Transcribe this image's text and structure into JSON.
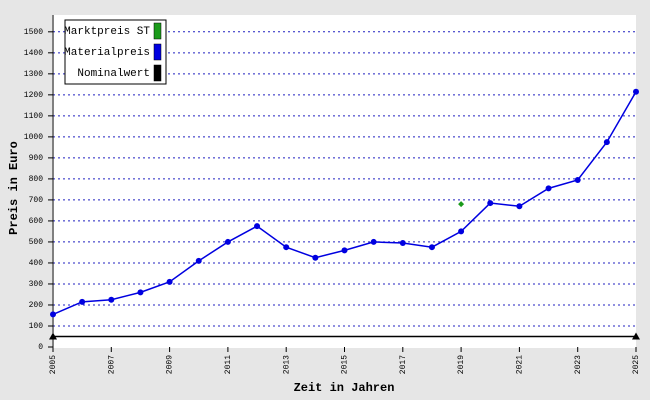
{
  "chart_data": {
    "type": "line",
    "x_label": "Zeit in Jahren",
    "y_label": "Preis in Euro",
    "xlim": [
      2005,
      2025
    ],
    "xticks": [
      2005,
      2007,
      2009,
      2011,
      2013,
      2015,
      2017,
      2019,
      2021,
      2023,
      2025
    ],
    "ylim": [
      0,
      1580
    ],
    "yticks": [
      0,
      100,
      200,
      300,
      400,
      500,
      600,
      700,
      800,
      900,
      1000,
      1100,
      1200,
      1300,
      1400,
      1500
    ],
    "grid": true,
    "legend": "top-left",
    "series": [
      {
        "name": "Marktpreis ST",
        "color": "#1a9a1a",
        "marker": "diamond",
        "x": [
          2019
        ],
        "values": [
          680
        ]
      },
      {
        "name": "Materialpreis",
        "color": "#0000e0",
        "marker": "circle",
        "x": [
          2005,
          2006,
          2007,
          2008,
          2009,
          2010,
          2011,
          2012,
          2013,
          2014,
          2015,
          2016,
          2017,
          2018,
          2019,
          2020,
          2021,
          2022,
          2023,
          2024,
          2025
        ],
        "values": [
          155,
          215,
          225,
          260,
          310,
          410,
          500,
          575,
          475,
          425,
          460,
          500,
          495,
          475,
          550,
          685,
          670,
          755,
          795,
          975,
          1215
        ]
      },
      {
        "name": "Nominalwert",
        "color": "#000000",
        "marker": "triangle",
        "x": [
          2005,
          2025
        ],
        "values": [
          50,
          50
        ]
      }
    ]
  }
}
